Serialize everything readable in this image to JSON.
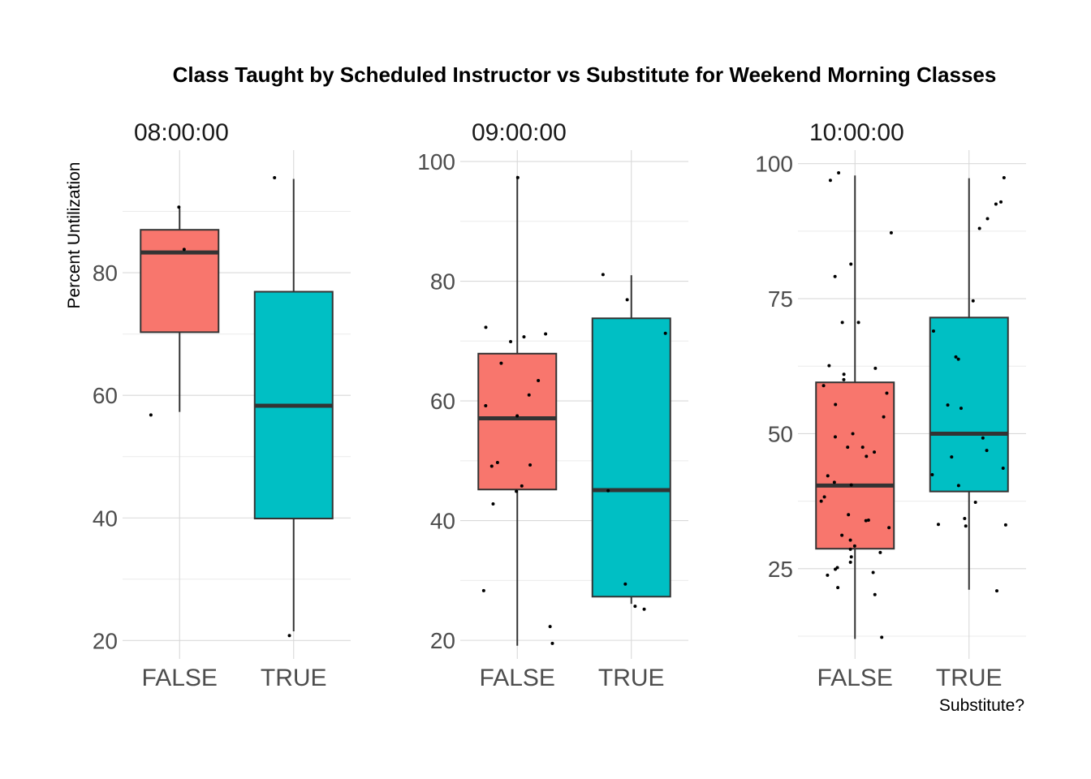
{
  "chart_data": {
    "type": "boxplot",
    "title": "Class Taught by Scheduled Instructor vs Substitute for Weekend Morning Classes",
    "ylabel": "Percent Untilization",
    "xlabel": "Substitute?",
    "categories": [
      "FALSE",
      "TRUE"
    ],
    "colors": {
      "FALSE": "#F8766D",
      "TRUE": "#00BFC4"
    },
    "grid": true,
    "legend": "none",
    "facets": [
      {
        "label": "08:00:00",
        "ylim": [
          17,
          100
        ],
        "yticks": [
          20,
          40,
          60,
          80
        ],
        "boxes": [
          {
            "group": "FALSE",
            "ymin": 57.3,
            "q1": 70.3,
            "median": 83.3,
            "q3": 87.0,
            "ymax": 90.5
          },
          {
            "group": "TRUE",
            "ymin": 21.5,
            "q1": 39.9,
            "median": 58.3,
            "q3": 76.9,
            "ymax": 95.3
          }
        ],
        "points": [
          {
            "group": "FALSE",
            "y": 90.7
          },
          {
            "group": "FALSE",
            "y": 83.8
          },
          {
            "group": "FALSE",
            "y": 56.8
          },
          {
            "group": "TRUE",
            "y": 95.5
          },
          {
            "group": "TRUE",
            "y": 20.8
          }
        ]
      },
      {
        "label": "09:00:00",
        "ylim": [
          16.9,
          101.9
        ],
        "yticks": [
          20,
          40,
          60,
          80,
          100
        ],
        "boxes": [
          {
            "group": "FALSE",
            "ymin": 19.1,
            "q1": 45.2,
            "median": 57.1,
            "q3": 67.9,
            "ymax": 97.6
          },
          {
            "group": "TRUE",
            "ymin": 26.1,
            "q1": 27.3,
            "median": 45.1,
            "q3": 73.8,
            "ymax": 81.0
          }
        ],
        "points": [
          {
            "group": "FALSE",
            "y": 97.3
          },
          {
            "group": "FALSE",
            "y": 72.3
          },
          {
            "group": "FALSE",
            "y": 71.2
          },
          {
            "group": "FALSE",
            "y": 70.7
          },
          {
            "group": "FALSE",
            "y": 69.9
          },
          {
            "group": "FALSE",
            "y": 66.3
          },
          {
            "group": "FALSE",
            "y": 63.4
          },
          {
            "group": "FALSE",
            "y": 61.0
          },
          {
            "group": "FALSE",
            "y": 59.2
          },
          {
            "group": "FALSE",
            "y": 57.5
          },
          {
            "group": "FALSE",
            "y": 49.7
          },
          {
            "group": "FALSE",
            "y": 49.3
          },
          {
            "group": "FALSE",
            "y": 49.1
          },
          {
            "group": "FALSE",
            "y": 45.8
          },
          {
            "group": "FALSE",
            "y": 44.9
          },
          {
            "group": "FALSE",
            "y": 42.8
          },
          {
            "group": "FALSE",
            "y": 28.3
          },
          {
            "group": "FALSE",
            "y": 22.3
          },
          {
            "group": "FALSE",
            "y": 19.5
          },
          {
            "group": "TRUE",
            "y": 81.1
          },
          {
            "group": "TRUE",
            "y": 76.9
          },
          {
            "group": "TRUE",
            "y": 71.3
          },
          {
            "group": "TRUE",
            "y": 45.0
          },
          {
            "group": "TRUE",
            "y": 29.4
          },
          {
            "group": "TRUE",
            "y": 25.7
          },
          {
            "group": "TRUE",
            "y": 25.2
          }
        ]
      },
      {
        "label": "10:00:00",
        "ylim": [
          8.3,
          102.5
        ],
        "yticks": [
          25,
          50,
          75,
          100
        ],
        "boxes": [
          {
            "group": "FALSE",
            "ymin": 12.0,
            "q1": 28.7,
            "median": 40.4,
            "q3": 59.5,
            "ymax": 97.8
          },
          {
            "group": "TRUE",
            "ymin": 21.1,
            "q1": 39.3,
            "median": 50.0,
            "q3": 71.5,
            "ymax": 97.3
          }
        ],
        "points": [
          {
            "group": "FALSE",
            "y": 98.3
          },
          {
            "group": "FALSE",
            "y": 96.9
          },
          {
            "group": "FALSE",
            "y": 87.2
          },
          {
            "group": "FALSE",
            "y": 81.4
          },
          {
            "group": "FALSE",
            "y": 79.1
          },
          {
            "group": "FALSE",
            "y": 70.6
          },
          {
            "group": "FALSE",
            "y": 70.6
          },
          {
            "group": "FALSE",
            "y": 62.6
          },
          {
            "group": "FALSE",
            "y": 62.1
          },
          {
            "group": "FALSE",
            "y": 61.0
          },
          {
            "group": "FALSE",
            "y": 60.0
          },
          {
            "group": "FALSE",
            "y": 58.9
          },
          {
            "group": "FALSE",
            "y": 57.5
          },
          {
            "group": "FALSE",
            "y": 55.4
          },
          {
            "group": "FALSE",
            "y": 53.1
          },
          {
            "group": "FALSE",
            "y": 50.0
          },
          {
            "group": "FALSE",
            "y": 49.4
          },
          {
            "group": "FALSE",
            "y": 47.5
          },
          {
            "group": "FALSE",
            "y": 47.5
          },
          {
            "group": "FALSE",
            "y": 46.6
          },
          {
            "group": "FALSE",
            "y": 45.8
          },
          {
            "group": "FALSE",
            "y": 42.2
          },
          {
            "group": "FALSE",
            "y": 41.0
          },
          {
            "group": "FALSE",
            "y": 40.5
          },
          {
            "group": "FALSE",
            "y": 38.3
          },
          {
            "group": "FALSE",
            "y": 37.5
          },
          {
            "group": "FALSE",
            "y": 35.0
          },
          {
            "group": "FALSE",
            "y": 34.0
          },
          {
            "group": "FALSE",
            "y": 33.9
          },
          {
            "group": "FALSE",
            "y": 32.6
          },
          {
            "group": "FALSE",
            "y": 31.2
          },
          {
            "group": "FALSE",
            "y": 30.3
          },
          {
            "group": "FALSE",
            "y": 29.2
          },
          {
            "group": "FALSE",
            "y": 28.6
          },
          {
            "group": "FALSE",
            "y": 28.0
          },
          {
            "group": "FALSE",
            "y": 27.2
          },
          {
            "group": "FALSE",
            "y": 26.2
          },
          {
            "group": "FALSE",
            "y": 25.2
          },
          {
            "group": "FALSE",
            "y": 24.9
          },
          {
            "group": "FALSE",
            "y": 24.3
          },
          {
            "group": "FALSE",
            "y": 23.8
          },
          {
            "group": "FALSE",
            "y": 21.5
          },
          {
            "group": "FALSE",
            "y": 20.2
          },
          {
            "group": "FALSE",
            "y": 12.3
          },
          {
            "group": "TRUE",
            "y": 97.4
          },
          {
            "group": "TRUE",
            "y": 92.9
          },
          {
            "group": "TRUE",
            "y": 92.5
          },
          {
            "group": "TRUE",
            "y": 89.8
          },
          {
            "group": "TRUE",
            "y": 88.0
          },
          {
            "group": "TRUE",
            "y": 74.6
          },
          {
            "group": "TRUE",
            "y": 69.0
          },
          {
            "group": "TRUE",
            "y": 64.2
          },
          {
            "group": "TRUE",
            "y": 63.8
          },
          {
            "group": "TRUE",
            "y": 55.3
          },
          {
            "group": "TRUE",
            "y": 54.7
          },
          {
            "group": "TRUE",
            "y": 49.2
          },
          {
            "group": "TRUE",
            "y": 46.9
          },
          {
            "group": "TRUE",
            "y": 45.7
          },
          {
            "group": "TRUE",
            "y": 43.6
          },
          {
            "group": "TRUE",
            "y": 42.4
          },
          {
            "group": "TRUE",
            "y": 40.4
          },
          {
            "group": "TRUE",
            "y": 37.3
          },
          {
            "group": "TRUE",
            "y": 34.3
          },
          {
            "group": "TRUE",
            "y": 33.2
          },
          {
            "group": "TRUE",
            "y": 33.1
          },
          {
            "group": "TRUE",
            "y": 32.9
          },
          {
            "group": "TRUE",
            "y": 20.9
          }
        ]
      }
    ]
  }
}
